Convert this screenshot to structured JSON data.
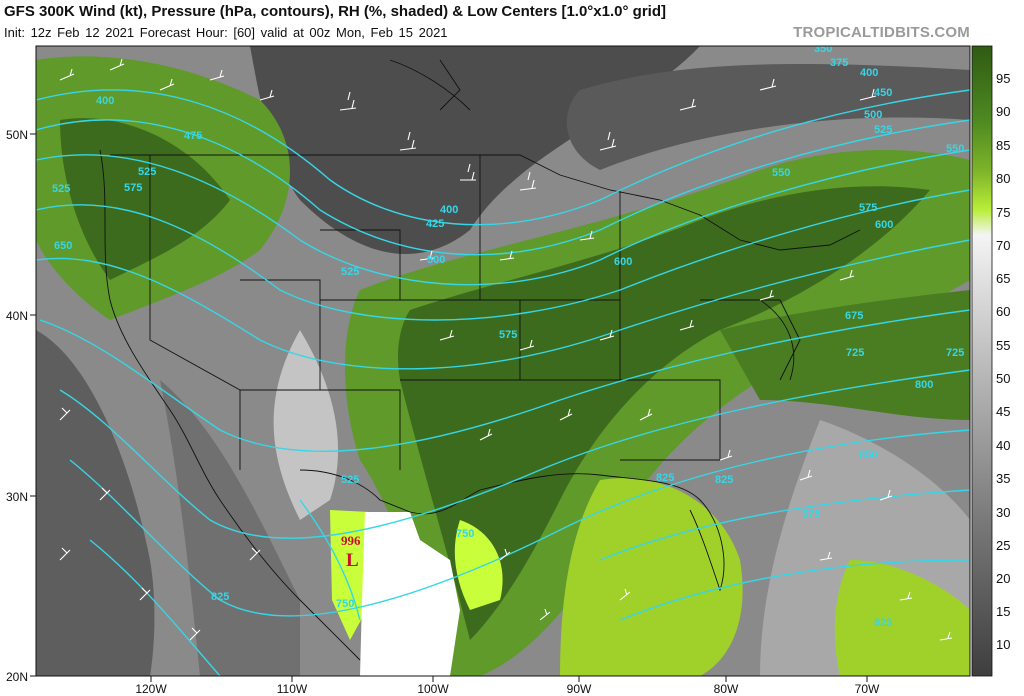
{
  "header": {
    "title": "GFS 300K Wind (kt), Pressure (hPa, contours), RH (%, shaded) & Low Centers [1.0°x1.0° grid]",
    "subtitle": "Init: 12z Feb 12 2021   Forecast Hour: [60]   valid at 00z Mon, Feb 15 2021",
    "brand": "TROPICALTIDBITS.COM"
  },
  "axes": {
    "latitudes": [
      "50N",
      "40N",
      "30N",
      "20N"
    ],
    "longitudes": [
      "120W",
      "110W",
      "100W",
      "90W",
      "80W",
      "70W"
    ]
  },
  "colorbar": {
    "labels": [
      "95",
      "90",
      "85",
      "80",
      "75",
      "70",
      "65",
      "60",
      "55",
      "50",
      "45",
      "40",
      "35",
      "30",
      "25",
      "20",
      "15",
      "10"
    ]
  },
  "contour_labels": [
    "400",
    "475",
    "525",
    "575",
    "525",
    "650",
    "400",
    "425",
    "500",
    "525",
    "600",
    "575",
    "550",
    "575",
    "600",
    "675",
    "725",
    "725",
    "800",
    "525",
    "750",
    "850",
    "825",
    "825",
    "375",
    "825",
    "825",
    "350",
    "375",
    "400",
    "450",
    "500",
    "525",
    "550",
    "750"
  ],
  "low_center": {
    "pressure": "996",
    "symbol": "L"
  },
  "colors": {
    "rh_dark": "#3d6b1e",
    "rh_mid": "#5f9a2a",
    "rh_light": "#9fd12a",
    "rh_bright": "#c8ff3a",
    "contour": "#37d6e6",
    "low": "#c8102e"
  }
}
